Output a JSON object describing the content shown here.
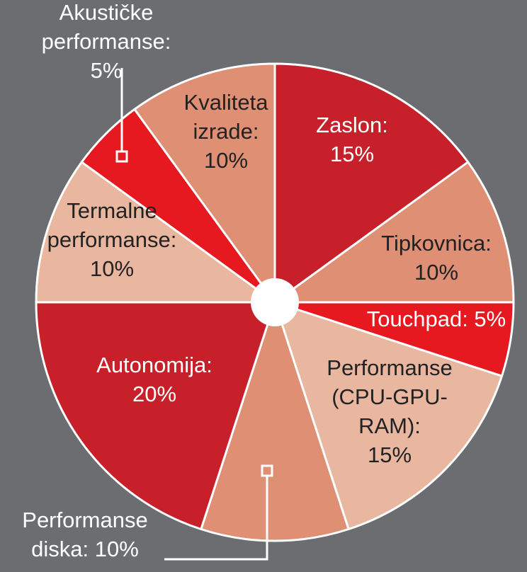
{
  "chart_data": {
    "type": "pie",
    "background": "#6b6d70",
    "hole_color": "#ffffff",
    "slices": [
      {
        "name": "Zaslon",
        "value": 15,
        "color": "#c8202a",
        "label_lines": [
          "Zaslon:",
          "15%"
        ],
        "label_color": "#ffffff"
      },
      {
        "name": "Tipkovnica",
        "value": 10,
        "color": "#de8f74",
        "label_lines": [
          "Tipkovnica:",
          "10%"
        ],
        "label_color": "#222222"
      },
      {
        "name": "Touchpad",
        "value": 5,
        "color": "#e5191f",
        "label_lines": [
          "Touchpad: 5%"
        ],
        "label_color": "#ffffff"
      },
      {
        "name": "Performanse (CPU-GPU-RAM)",
        "value": 15,
        "color": "#e9b6a0",
        "label_lines": [
          "Performanse",
          "(CPU-GPU-",
          "RAM):",
          "15%"
        ],
        "label_color": "#222222"
      },
      {
        "name": "Performanse diska",
        "value": 10,
        "color": "#de8f74",
        "label_lines": [
          "Performanse",
          "diska: 10%"
        ],
        "label_color": "#ffffff",
        "external": true
      },
      {
        "name": "Autonomija",
        "value": 20,
        "color": "#c8202a",
        "label_lines": [
          "Autonomija:",
          "20%"
        ],
        "label_color": "#ffffff"
      },
      {
        "name": "Termalne performanse",
        "value": 10,
        "color": "#e9b6a0",
        "label_lines": [
          "Termalne",
          "performanse:",
          "10%"
        ],
        "label_color": "#222222"
      },
      {
        "name": "Akustičke performanse",
        "value": 5,
        "color": "#e5191f",
        "label_lines": [
          "Akustičke",
          "performanse:",
          "5%"
        ],
        "label_color": "#ffffff",
        "external": true
      },
      {
        "name": "Kvaliteta izrade",
        "value": 10,
        "color": "#de8f74",
        "label_lines": [
          "Kvaliteta",
          "izrade:",
          "10%"
        ],
        "label_color": "#222222"
      }
    ]
  }
}
